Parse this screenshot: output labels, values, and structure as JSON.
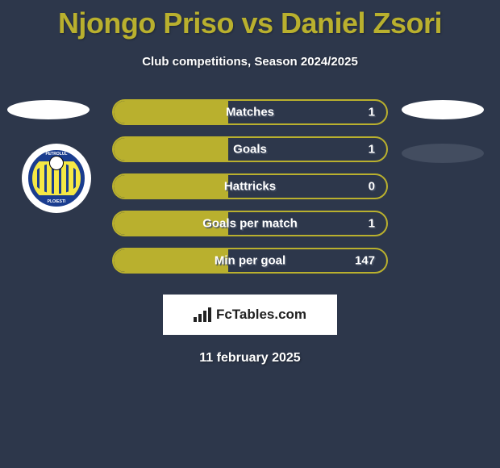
{
  "title": "Njongo Priso vs Daniel Zsori",
  "subtitle": "Club competitions, Season 2024/2025",
  "date": "11 february 2025",
  "colors": {
    "background": "#2d374b",
    "accent": "#b9b02e",
    "text": "#ffffff",
    "shadow_text": "#4a5468",
    "oval_dark": "#434d60",
    "badge_bg": "#ffffff",
    "badge_text": "#212121",
    "logo_blue": "#1a3d8f",
    "logo_yellow": "#f5e845"
  },
  "club_logo": {
    "top_text": "PETROLUL",
    "bottom_text": "PLOIESTI"
  },
  "stats": [
    {
      "label": "Matches",
      "value": "1",
      "fill_pct": 42
    },
    {
      "label": "Goals",
      "value": "1",
      "fill_pct": 42
    },
    {
      "label": "Hattricks",
      "value": "0",
      "fill_pct": 42
    },
    {
      "label": "Goals per match",
      "value": "1",
      "fill_pct": 42
    },
    {
      "label": "Min per goal",
      "value": "147",
      "fill_pct": 42
    }
  ],
  "badge": {
    "text": "FcTables.com"
  }
}
